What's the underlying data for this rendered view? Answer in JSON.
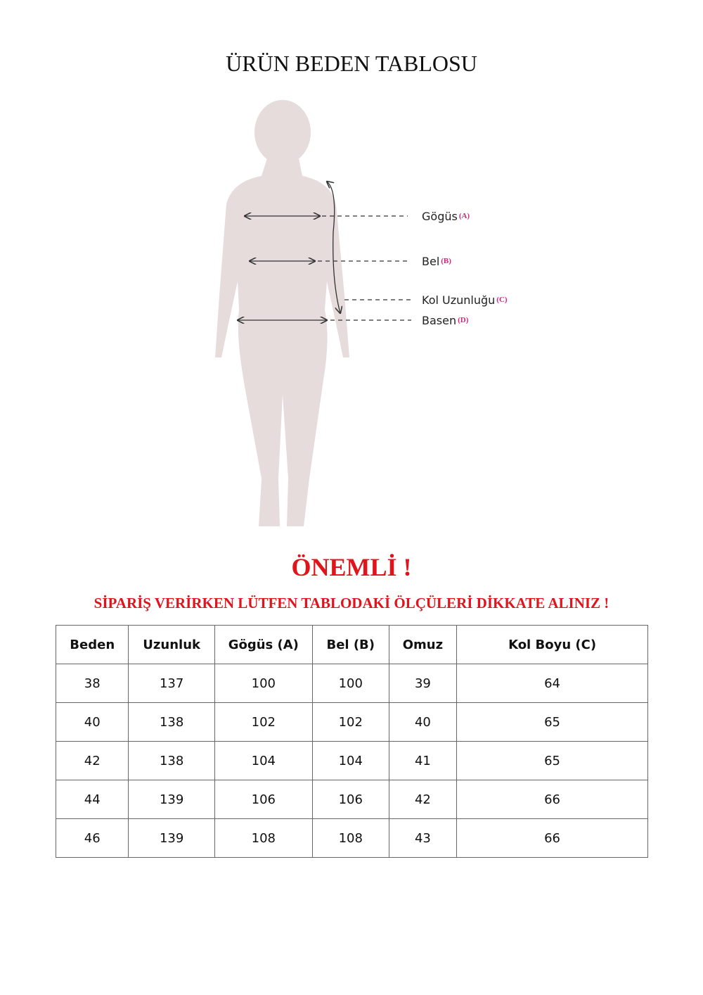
{
  "header": {
    "title": "ÜRÜN BEDEN TABLOSU"
  },
  "figure": {
    "labels": [
      {
        "name": "Gögüs",
        "code": "(A)"
      },
      {
        "name": "Bel",
        "code": "(B)"
      },
      {
        "name": "Kol Uzunluğu",
        "code": "(C)"
      },
      {
        "name": "Basen",
        "code": "(D)"
      }
    ]
  },
  "notice": {
    "title": "ÖNEMLİ !",
    "text": "SİPARİŞ VERİRKEN LÜTFEN TABLODAKİ ÖLÇÜLERİ DİKKATE ALINIZ !"
  },
  "table": {
    "columns": [
      "Beden",
      "Uzunluk",
      "Gögüs (A)",
      "Bel (B)",
      "Omuz",
      "Kol Boyu (C)"
    ],
    "rows": [
      [
        38,
        137,
        100,
        100,
        39,
        64
      ],
      [
        40,
        138,
        102,
        102,
        40,
        65
      ],
      [
        42,
        138,
        104,
        104,
        41,
        65
      ],
      [
        44,
        139,
        106,
        106,
        42,
        66
      ],
      [
        46,
        139,
        108,
        108,
        43,
        66
      ]
    ]
  }
}
